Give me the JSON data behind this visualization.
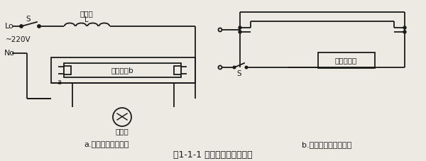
{
  "title": "图1-1-1 单管荧光灯照明线路",
  "label_a": "a.普通镇流器接线图",
  "label_b": "b.电子式镇流器接线图",
  "bg_color": "#ede9e3",
  "line_color": "#1a1a1a",
  "lw": 1.3,
  "font_size_title": 9,
  "font_size_label": 8,
  "font_size_small": 7.5
}
